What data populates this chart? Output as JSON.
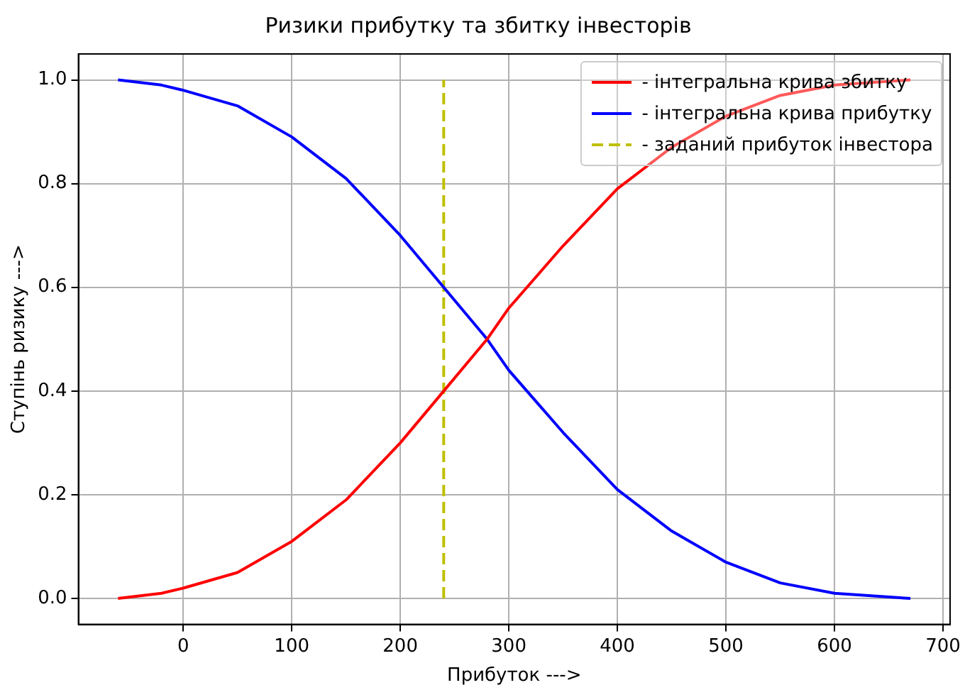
{
  "chart_data": {
    "type": "line",
    "title": "Ризики прибутку та збитку інвесторів",
    "xlabel": "Прибуток --->",
    "ylabel": "Ступінь ризику --->",
    "x": [
      -60,
      -20,
      0,
      50,
      100,
      150,
      200,
      240,
      280,
      300,
      350,
      400,
      450,
      500,
      550,
      600,
      670
    ],
    "series": [
      {
        "name": "- інтегральна крива збитку",
        "color": "#ff0000",
        "values": [
          0.0,
          0.01,
          0.02,
          0.05,
          0.11,
          0.19,
          0.3,
          0.4,
          0.5,
          0.56,
          0.68,
          0.79,
          0.87,
          0.93,
          0.97,
          0.99,
          1.0
        ]
      },
      {
        "name": "- інтегральна крива прибутку",
        "color": "#0000ff",
        "values": [
          1.0,
          0.99,
          0.98,
          0.95,
          0.89,
          0.81,
          0.7,
          0.6,
          0.5,
          0.44,
          0.32,
          0.21,
          0.13,
          0.07,
          0.03,
          0.01,
          0.0
        ]
      },
      {
        "name": "- заданий прибуток інвестора",
        "color": "#bfbf00",
        "x": [
          240,
          240
        ],
        "values": [
          0,
          1
        ],
        "line_style": "dashed"
      }
    ],
    "xlim": [
      -96.5,
      706.5
    ],
    "xticks": [
      0,
      100,
      200,
      300,
      400,
      500,
      600,
      700
    ],
    "ylim": [
      -0.05,
      1.05
    ],
    "yticks": [
      {
        "value": 0,
        "label": "0.0"
      },
      {
        "value": 0.2,
        "label": "0.2"
      },
      {
        "value": 0.4,
        "label": "0.4"
      },
      {
        "value": 0.6,
        "label": "0.6"
      },
      {
        "value": 0.8,
        "label": "0.8"
      },
      {
        "value": 1,
        "label": "1.0"
      }
    ],
    "grid": true,
    "legend": "top right",
    "marker": "none",
    "line_style": "solid"
  }
}
